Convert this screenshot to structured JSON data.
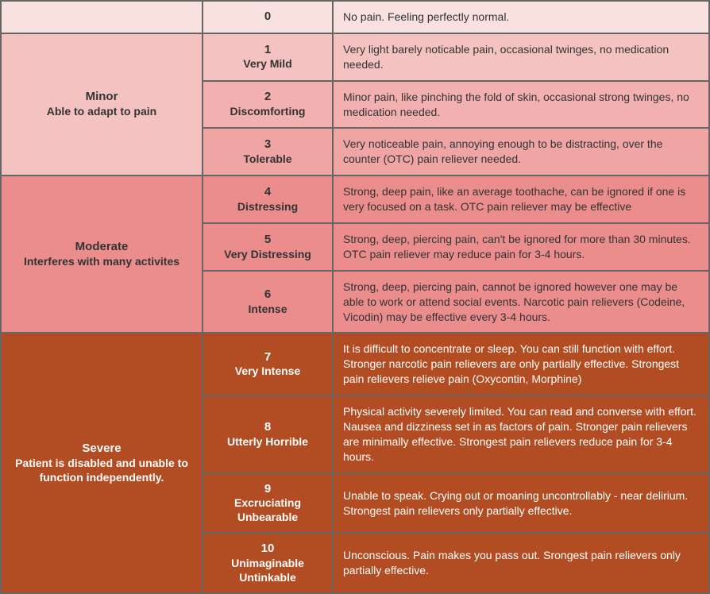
{
  "colors": {
    "header": "#f9e1e0",
    "minor1": "#f4c3c1",
    "minor2": "#f2b1b0",
    "minor3": "#eea5a4",
    "moderate": "#ea8d8c",
    "severe": "#b24d23",
    "border": "#666666",
    "text_dark": "#333333",
    "text_light": "#ffffff"
  },
  "header": {
    "level_num": "0",
    "desc": "No pain. Feeling perfectly normal."
  },
  "categories": [
    {
      "title": "Minor",
      "subtitle": "Able to adapt to pain",
      "bg": "#f4c3c1",
      "text": "#333333",
      "rows": [
        {
          "num": "1",
          "name": "Very Mild",
          "bg": "#f4c3c1",
          "desc": "Very light barely noticable pain, occasional twinges, no medication needed."
        },
        {
          "num": "2",
          "name": "Discomforting",
          "bg": "#f2b1b0",
          "desc": "Minor pain, like pinching the fold of skin, occasional strong twinges, no medication needed."
        },
        {
          "num": "3",
          "name": "Tolerable",
          "bg": "#eea5a4",
          "desc": "Very noticeable pain, annoying enough to be distracting, over the counter (OTC) pain reliever needed."
        }
      ]
    },
    {
      "title": "Moderate",
      "subtitle": "Interferes with many activites",
      "bg": "#ea8d8c",
      "text": "#333333",
      "rows": [
        {
          "num": "4",
          "name": "Distressing",
          "bg": "#ea8d8c",
          "desc": "Strong, deep pain, like an average toothache, can be ignored if one is very focused on a task. OTC pain reliever may be effective"
        },
        {
          "num": "5",
          "name": "Very Distressing",
          "bg": "#ea8d8c",
          "desc": "Strong, deep, piercing pain, can't be ignored for more than 30 minutes. OTC pain reliever may reduce pain for 3-4 hours."
        },
        {
          "num": "6",
          "name": "Intense",
          "bg": "#ea8d8c",
          "desc": "Strong, deep, piercing pain, cannot be ignored however one may be able to work or attend social events. Narcotic pain relievers (Codeine, Vicodin) may be effective every 3-4 hours."
        }
      ]
    },
    {
      "title": "Severe",
      "subtitle": "Patient is disabled and unable to function independently.",
      "bg": "#b24d23",
      "text": "#ffffff",
      "rows": [
        {
          "num": "7",
          "name": "Very Intense",
          "bg": "#b24d23",
          "desc": "It is difficult to concentrate or sleep. You can still function with effort. Stronger narcotic pain relievers are only partially effective. Strongest pain relievers relieve pain (Oxycontin, Morphine)"
        },
        {
          "num": "8",
          "name": "Utterly Horrible",
          "bg": "#b24d23",
          "desc": "Physical activity severely limited. You can read and converse with effort. Nausea and dizziness set in as factors of pain. Stronger pain relievers are minimally effective. Strongest pain relievers reduce pain for 3-4 hours."
        },
        {
          "num": "9",
          "name": "Excruciating Unbearable",
          "bg": "#b24d23",
          "desc": "Unable to speak. Crying out or moaning uncontrollably - near delirium. Strongest pain relievers only partially effective."
        },
        {
          "num": "10",
          "name": "Unimaginable Untinkable",
          "bg": "#b24d23",
          "desc": "Unconscious. Pain makes you pass out. Srongest pain relievers only partially effective."
        }
      ]
    }
  ]
}
